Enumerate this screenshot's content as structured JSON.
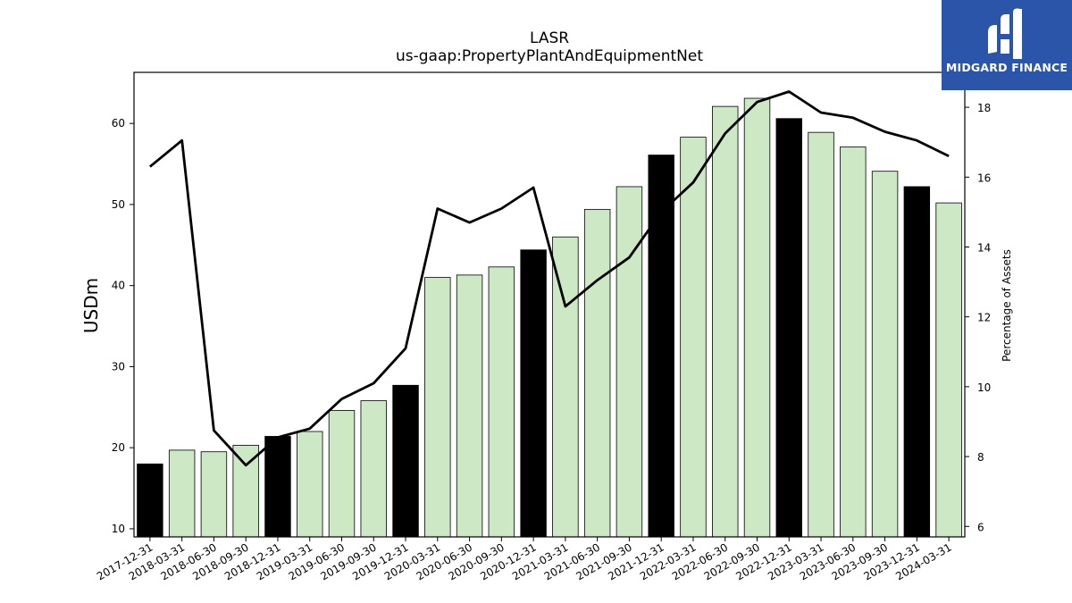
{
  "chart_data": {
    "type": "bar",
    "title": "LASR",
    "subtitle": "us-gaap:PropertyPlantAndEquipmentNet",
    "ylabel": "USDm",
    "y2label": "Percentage of Assets",
    "ylim": [
      9,
      66.3
    ],
    "y2lim": [
      5.7,
      19.0
    ],
    "yticks": [
      10,
      20,
      30,
      40,
      50,
      60
    ],
    "y2ticks": [
      6,
      8,
      10,
      12,
      14,
      16,
      18
    ],
    "categories": [
      "2017-12-31",
      "2018-03-31",
      "2018-06-30",
      "2018-09-30",
      "2018-12-31",
      "2019-03-31",
      "2019-06-30",
      "2019-09-30",
      "2019-12-31",
      "2020-03-31",
      "2020-06-30",
      "2020-09-30",
      "2020-12-31",
      "2021-03-31",
      "2021-06-30",
      "2021-09-30",
      "2021-12-31",
      "2022-03-31",
      "2022-06-30",
      "2022-09-30",
      "2022-12-31",
      "2023-03-31",
      "2023-06-30",
      "2023-09-30",
      "2023-12-31",
      "2024-03-31"
    ],
    "series": [
      {
        "kind": "bar",
        "values": [
          18.0,
          19.7,
          19.5,
          20.3,
          21.4,
          22.0,
          24.6,
          25.8,
          27.7,
          41.0,
          41.3,
          42.3,
          44.4,
          46.0,
          49.4,
          52.2,
          56.1,
          58.3,
          62.1,
          63.1,
          60.6,
          58.9,
          57.1,
          54.1,
          52.2,
          50.2
        ],
        "colors": [
          "#000000",
          "#cce8c4",
          "#cce8c4",
          "#cce8c4",
          "#000000",
          "#cce8c4",
          "#cce8c4",
          "#cce8c4",
          "#000000",
          "#cce8c4",
          "#cce8c4",
          "#cce8c4",
          "#000000",
          "#cce8c4",
          "#cce8c4",
          "#cce8c4",
          "#000000",
          "#cce8c4",
          "#cce8c4",
          "#cce8c4",
          "#000000",
          "#cce8c4",
          "#cce8c4",
          "#cce8c4",
          "#000000",
          "#cce8c4"
        ]
      },
      {
        "kind": "line",
        "axis": "right",
        "color": "#000000",
        "values": [
          16.3,
          17.05,
          8.75,
          7.75,
          8.55,
          8.8,
          9.65,
          10.1,
          11.1,
          15.1,
          14.7,
          15.1,
          15.7,
          12.3,
          13.05,
          13.7,
          15.0,
          15.85,
          17.25,
          18.15,
          18.45,
          17.85,
          17.7,
          17.3,
          17.05,
          16.6
        ]
      }
    ]
  },
  "branding": {
    "logo_text": "MIDGARD FINANCE",
    "logo_color": "#2a55a8"
  }
}
